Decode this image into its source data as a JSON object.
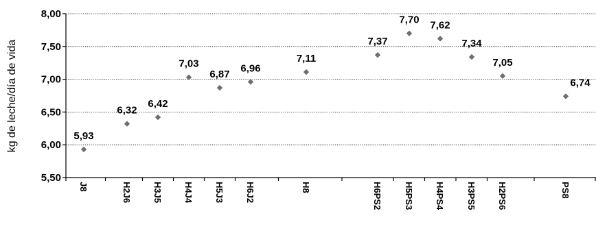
{
  "chart_data": {
    "type": "scatter",
    "title": "",
    "xlabel": "",
    "ylabel": "kg de leche/día de vida",
    "ylim": [
      5.5,
      8.0
    ],
    "yticks": [
      "5,50",
      "6,00",
      "6,50",
      "7,00",
      "7,50",
      "8,00"
    ],
    "grid": true,
    "marker": "diamond",
    "marker_color": "#6e6e6e",
    "categories": [
      "J8",
      "H2J6",
      "H3J5",
      "H4J4",
      "H5J3",
      "H6J2",
      "H8",
      "H6PS2",
      "H5PS3",
      "H4PS4",
      "H3PS5",
      "H2PS6",
      "PS8"
    ],
    "values": [
      5.93,
      6.32,
      6.42,
      7.03,
      6.87,
      6.96,
      7.11,
      7.37,
      7.7,
      7.62,
      7.34,
      7.05,
      6.74
    ],
    "value_labels": [
      "5,93",
      "6,32",
      "6,42",
      "7,03",
      "6,87",
      "6,96",
      "7,11",
      "7,37",
      "7,70",
      "7,62",
      "7,34",
      "7,05",
      "6,74"
    ]
  }
}
